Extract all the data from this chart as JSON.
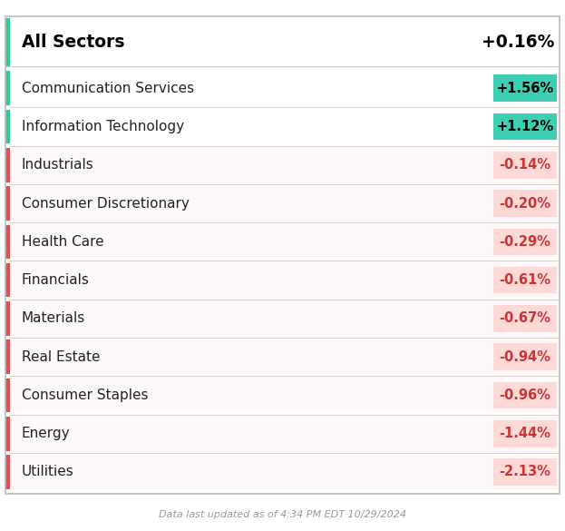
{
  "title_sector": "All Sectors",
  "title_value": "+0.16%",
  "footer": "Data last updated as of 4:34 PM EDT 10/29/2024",
  "rows": [
    {
      "sector": "Communication Services",
      "value": "+1.56%",
      "positive": true
    },
    {
      "sector": "Information Technology",
      "value": "+1.12%",
      "positive": true
    },
    {
      "sector": "Industrials",
      "value": "-0.14%",
      "positive": false
    },
    {
      "sector": "Consumer Discretionary",
      "value": "-0.20%",
      "positive": false
    },
    {
      "sector": "Health Care",
      "value": "-0.29%",
      "positive": false
    },
    {
      "sector": "Financials",
      "value": "-0.61%",
      "positive": false
    },
    {
      "sector": "Materials",
      "value": "-0.67%",
      "positive": false
    },
    {
      "sector": "Real Estate",
      "value": "-0.94%",
      "positive": false
    },
    {
      "sector": "Consumer Staples",
      "value": "-0.96%",
      "positive": false
    },
    {
      "sector": "Energy",
      "value": "-1.44%",
      "positive": false
    },
    {
      "sector": "Utilities",
      "value": "-2.13%",
      "positive": false
    }
  ],
  "colors": {
    "bg": "#ffffff",
    "positive_tag_bg": "#3ecfb2",
    "negative_tag_bg": "#fdd9d7",
    "positive_tag_text": "#000000",
    "negative_tag_text": "#cc3333",
    "positive_bar": "#2ecc8e",
    "negative_bar": "#e05050",
    "divider": "#cccccc",
    "sector_text": "#222222",
    "title_text": "#000000",
    "footer_text": "#999999",
    "outer_border": "#bbbbbb",
    "row_neg_bg": "#fff8f8"
  },
  "figsize": [
    6.23,
    5.85
  ],
  "dpi": 100
}
